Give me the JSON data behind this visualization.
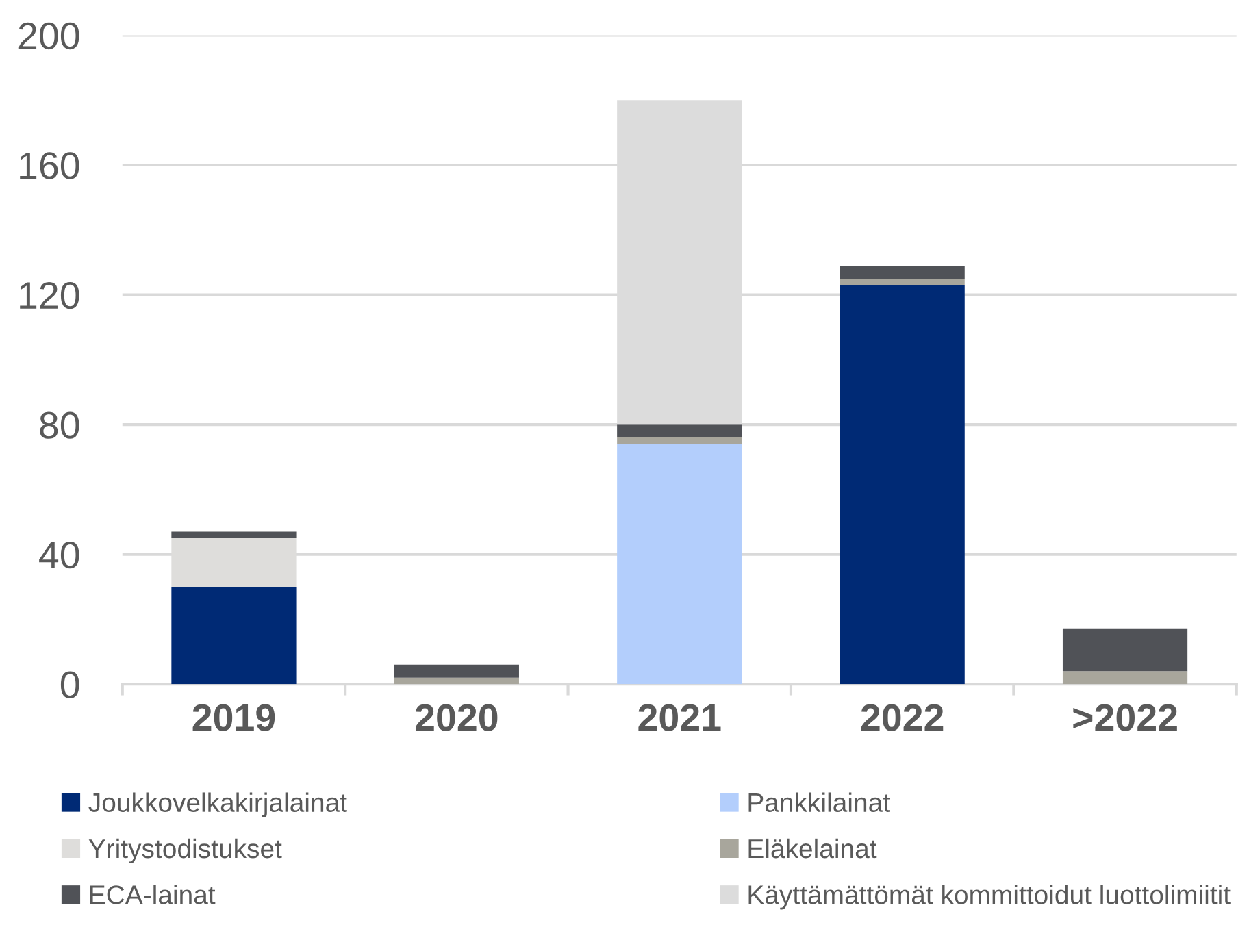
{
  "chart_data": {
    "type": "bar",
    "stacked": true,
    "categories": [
      "2019",
      "2020",
      "2021",
      "2022",
      ">2022"
    ],
    "series": [
      {
        "name": "Joukkovelkakirjalainat",
        "color": "#002a75",
        "values": [
          30,
          0,
          0,
          123,
          0
        ]
      },
      {
        "name": "Pankkilainat",
        "color": "#b3cefc",
        "values": [
          0,
          0,
          74,
          0,
          0
        ]
      },
      {
        "name": "Yritystodistukset",
        "color": "#dedddb",
        "values": [
          15,
          0,
          0,
          0,
          0
        ]
      },
      {
        "name": "Eläkelainat",
        "color": "#a8a69c",
        "values": [
          0,
          2,
          2,
          2,
          4
        ]
      },
      {
        "name": "ECA-lainat",
        "color": "#505257",
        "values": [
          2,
          4,
          4,
          4,
          13
        ]
      },
      {
        "name": "Käyttämättömät kommittoidut luottolimiitit",
        "color": "#dcdcdc",
        "values": [
          0,
          0,
          100,
          0,
          0
        ]
      }
    ],
    "ylim": [
      0,
      200
    ],
    "yticks": [
      0,
      40,
      80,
      120,
      160,
      200
    ],
    "grid": "y",
    "legend": "bottom"
  }
}
